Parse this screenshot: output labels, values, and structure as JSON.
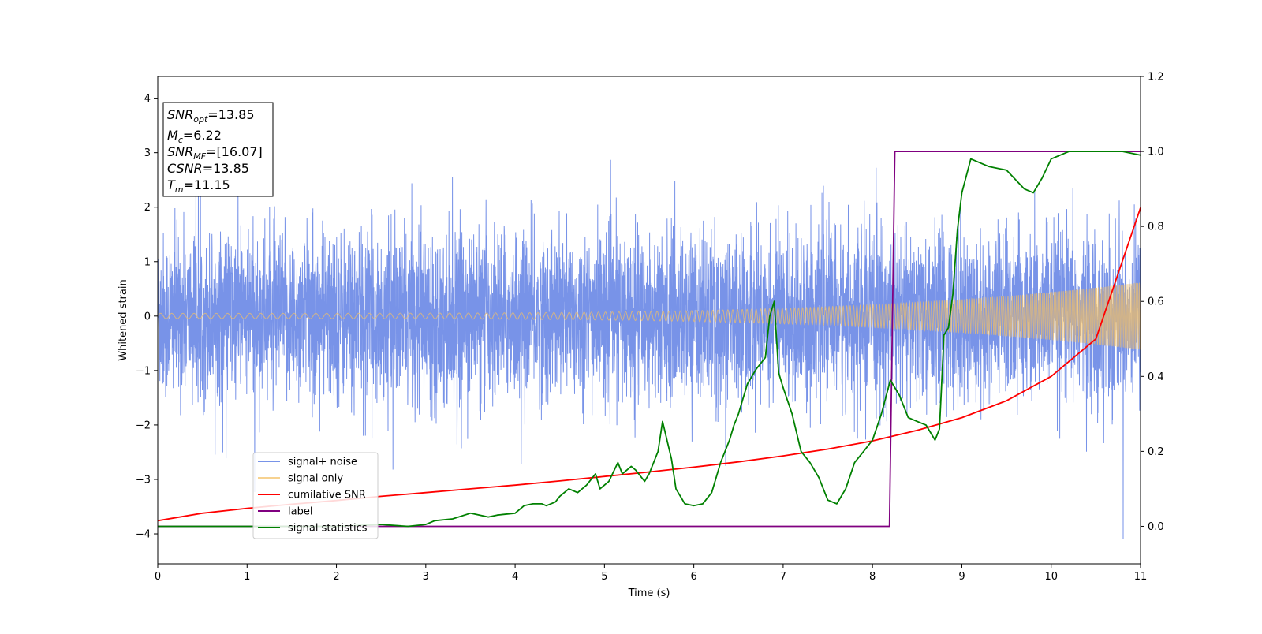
{
  "chart_data": {
    "type": "line",
    "xlabel": "Time (s)",
    "ylabel": "Whitened strain",
    "xlim": [
      0,
      11
    ],
    "ylim": [
      -4.55,
      4.4
    ],
    "y2lim": [
      -0.1,
      1.2
    ],
    "xticks": [
      "0",
      "1",
      "2",
      "3",
      "4",
      "5",
      "6",
      "7",
      "8",
      "9",
      "10",
      "11"
    ],
    "yticks": [
      "−4",
      "−3",
      "−2",
      "−1",
      "0",
      "1",
      "2",
      "3",
      "4"
    ],
    "y2ticks": [
      "0.0",
      "0.2",
      "0.4",
      "0.6",
      "0.8",
      "1.0",
      "1.2"
    ],
    "grid": false,
    "legend_position": "lower-left",
    "annotation": {
      "lines": [
        {
          "sym": "SNR",
          "sub": "opt",
          "val": "=13.85"
        },
        {
          "sym": "M",
          "sub": "c",
          "val": "=6.22"
        },
        {
          "sym": "SNR",
          "sub": "MF",
          "val": "=[16.07]"
        },
        {
          "sym": "CSNR",
          "sub": "",
          "val": "=13.85"
        },
        {
          "sym": "T",
          "sub": "m",
          "val": "=11.15"
        }
      ]
    },
    "series": [
      {
        "name": "signal+ noise",
        "color": "#7893e8",
        "axis": "left",
        "kind": "noisy",
        "approx_std": 0.75,
        "peak_range": [
          -4.1,
          4.0
        ]
      },
      {
        "name": "signal only",
        "color": "#f5c062",
        "axis": "left",
        "kind": "chirp",
        "amplitude_start": 0.05,
        "amplitude_end": 0.62,
        "frequency_start_hz": 8,
        "frequency_end_hz": 60
      },
      {
        "name": "cumilative SNR",
        "color": "#ff0000",
        "axis": "right",
        "x": [
          0,
          0.5,
          1,
          1.5,
          2,
          2.5,
          3,
          3.5,
          4,
          4.5,
          5,
          5.5,
          6,
          6.5,
          7,
          7.5,
          8,
          8.5,
          9,
          9.5,
          10,
          10.5,
          11
        ],
        "y": [
          0.015,
          0.035,
          0.048,
          0.059,
          0.069,
          0.08,
          0.09,
          0.1,
          0.11,
          0.121,
          0.133,
          0.145,
          0.158,
          0.172,
          0.188,
          0.206,
          0.228,
          0.256,
          0.29,
          0.335,
          0.4,
          0.5,
          0.85
        ]
      },
      {
        "name": "label",
        "color": "#800080",
        "axis": "right",
        "x": [
          0,
          8.19,
          8.25,
          11
        ],
        "y": [
          0,
          0,
          1,
          1
        ]
      },
      {
        "name": "signal statistics",
        "color": "#008000",
        "axis": "right",
        "x": [
          0,
          1,
          2,
          2.5,
          2.8,
          3.0,
          3.1,
          3.3,
          3.5,
          3.7,
          3.8,
          4.0,
          4.1,
          4.2,
          4.3,
          4.35,
          4.45,
          4.5,
          4.55,
          4.6,
          4.7,
          4.75,
          4.8,
          4.9,
          4.95,
          5.05,
          5.15,
          5.2,
          5.3,
          5.35,
          5.45,
          5.5,
          5.6,
          5.65,
          5.75,
          5.8,
          5.9,
          6.0,
          6.1,
          6.2,
          6.3,
          6.4,
          6.45,
          6.5,
          6.55,
          6.6,
          6.7,
          6.8,
          6.85,
          6.9,
          6.95,
          7.0,
          7.1,
          7.2,
          7.3,
          7.4,
          7.5,
          7.6,
          7.7,
          7.8,
          7.9,
          8.0,
          8.1,
          8.2,
          8.3,
          8.4,
          8.5,
          8.6,
          8.7,
          8.75,
          8.8,
          8.85,
          8.9,
          8.95,
          9.0,
          9.1,
          9.2,
          9.3,
          9.5,
          9.7,
          9.8,
          9.9,
          10.0,
          10.2,
          10.4,
          10.6,
          10.8,
          11.0
        ],
        "y": [
          0.0,
          0.0,
          0.0,
          0.005,
          0.0,
          0.005,
          0.015,
          0.02,
          0.035,
          0.025,
          0.03,
          0.035,
          0.055,
          0.06,
          0.06,
          0.055,
          0.065,
          0.08,
          0.09,
          0.1,
          0.09,
          0.1,
          0.11,
          0.14,
          0.1,
          0.12,
          0.17,
          0.14,
          0.16,
          0.15,
          0.12,
          0.14,
          0.2,
          0.28,
          0.18,
          0.1,
          0.06,
          0.055,
          0.06,
          0.09,
          0.17,
          0.23,
          0.27,
          0.3,
          0.34,
          0.38,
          0.42,
          0.45,
          0.56,
          0.6,
          0.41,
          0.37,
          0.3,
          0.2,
          0.17,
          0.13,
          0.07,
          0.06,
          0.1,
          0.17,
          0.2,
          0.23,
          0.3,
          0.39,
          0.35,
          0.29,
          0.28,
          0.27,
          0.23,
          0.26,
          0.51,
          0.53,
          0.62,
          0.79,
          0.89,
          0.98,
          0.97,
          0.96,
          0.95,
          0.9,
          0.89,
          0.93,
          0.98,
          1.0,
          1.0,
          1.0,
          1.0,
          0.99
        ]
      }
    ]
  }
}
